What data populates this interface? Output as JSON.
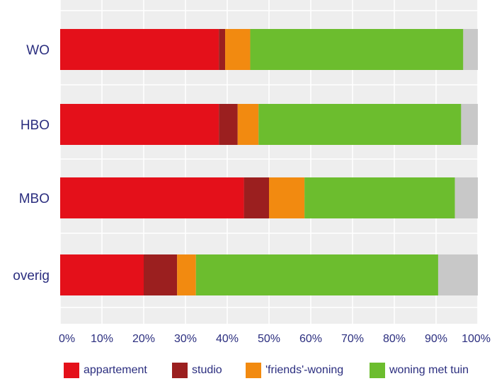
{
  "chart_data": {
    "type": "bar",
    "orientation": "horizontal",
    "stacked": true,
    "categories": [
      "WO",
      "HBO",
      "MBO",
      "overig"
    ],
    "series": [
      {
        "name": "appartement",
        "color": "#e4101a",
        "values": [
          38,
          38,
          44,
          20
        ]
      },
      {
        "name": "studio",
        "color": "#9b1f1f",
        "values": [
          1.5,
          4.5,
          6,
          8
        ]
      },
      {
        "name": "'friends'-woning",
        "color": "#f28a10",
        "values": [
          6,
          5,
          8.5,
          4.5
        ]
      },
      {
        "name": "woning met tuin",
        "color": "#6cbd2e",
        "values": [
          51,
          48.5,
          36,
          58
        ]
      },
      {
        "name": "",
        "color": "#c8c8c8",
        "values": [
          3.5,
          4,
          5.5,
          9.5
        ]
      }
    ],
    "xlim": [
      0,
      100
    ],
    "x_ticks": [
      "0%",
      "10%",
      "20%",
      "30%",
      "40%",
      "50%",
      "60%",
      "70%",
      "80%",
      "90%",
      "100%"
    ],
    "grid": true,
    "legend_placement": "bottom"
  }
}
